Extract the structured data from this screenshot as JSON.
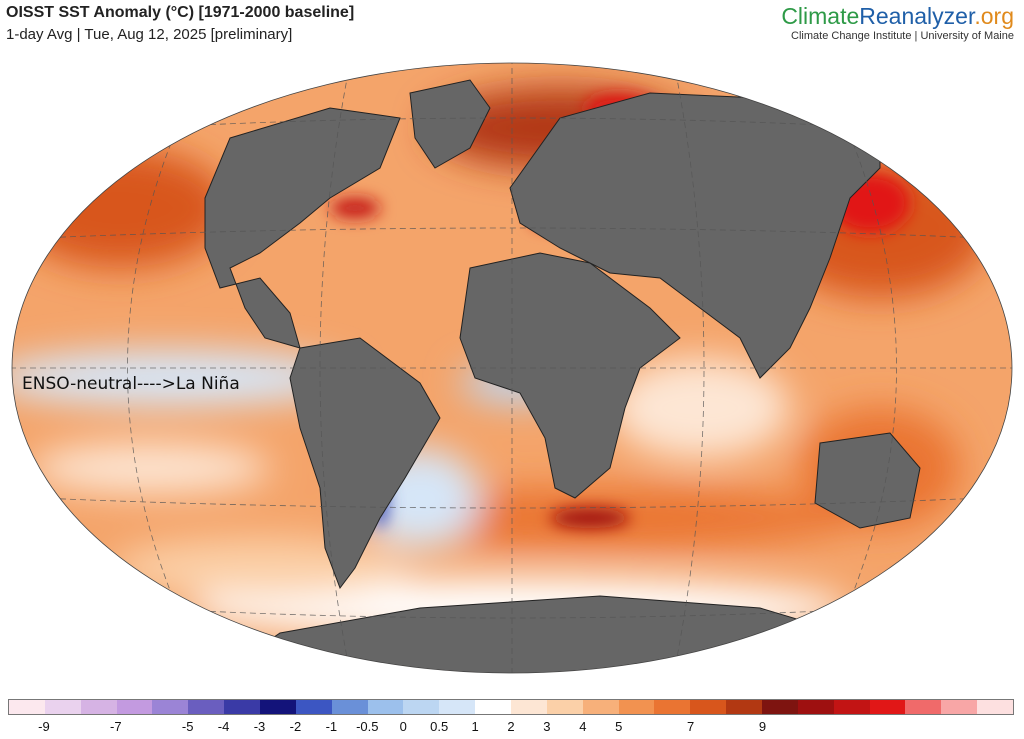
{
  "header": {
    "title": "OISST SST Anomaly (°C) [1971-2000 baseline]",
    "subtitle": "1-day Avg | Tue, Aug 12, 2025 [preliminary]"
  },
  "brand": {
    "part1": "Climate",
    "part2": "Reanalyzer",
    "part3": ".org",
    "subtitle": "Climate Change Institute | University of Maine"
  },
  "map": {
    "annotation": "ENSO-neutral---->La Niña",
    "projection": "robinson",
    "land_color": "#666666",
    "ocean_base_color": "#f4a46a",
    "graticule": "dashed"
  },
  "legend": {
    "colors": [
      "#fce8ee",
      "#ead2ee",
      "#d6b3e4",
      "#c39ae0",
      "#9b84d6",
      "#6a5ebf",
      "#3a3aa6",
      "#13137a",
      "#3c56c2",
      "#6a90d8",
      "#9cc0ec",
      "#bcd6f2",
      "#d6e6f8",
      "#ffffff",
      "#fde6d4",
      "#fbd0a8",
      "#f7b07a",
      "#f29250",
      "#ea7432",
      "#d8561c",
      "#b23812",
      "#7e1410",
      "#9e1010",
      "#c21414",
      "#e11717",
      "#f06a6a",
      "#f8a6a6",
      "#fde0e0"
    ],
    "tick_labels": [
      "-9",
      "-7",
      "-5",
      "-4",
      "-3",
      "-2",
      "-1",
      "-0.5",
      "0",
      "0.5",
      "1",
      "2",
      "3",
      "4",
      "5",
      "7",
      "9"
    ],
    "tick_positions": [
      1,
      3,
      5,
      6,
      7,
      8,
      9,
      10,
      11,
      12,
      13,
      14,
      15,
      16,
      17,
      19,
      21
    ]
  }
}
